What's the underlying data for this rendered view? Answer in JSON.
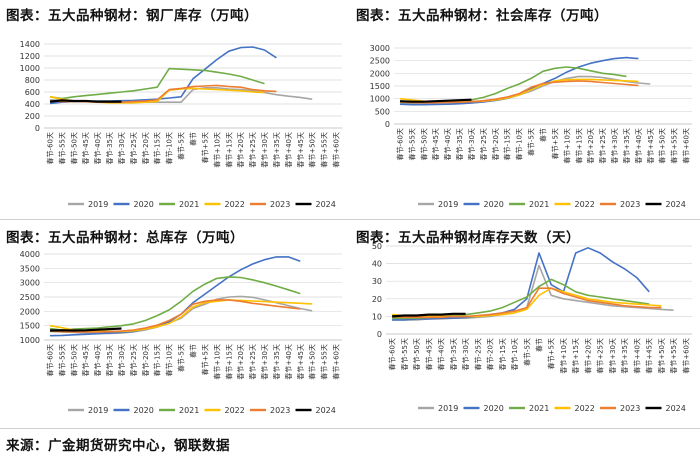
{
  "source": "来源：广金期货研究中心，钢联数据",
  "colors": {
    "2019": "#a6a6a6",
    "2020": "#4472c4",
    "2021": "#70ad47",
    "2022": "#ffc000",
    "2023": "#ed7d31",
    "2024": "#000000"
  },
  "chart_data": [
    {
      "type": "line",
      "title": "图表：五大品种钢材：钢厂库存（万吨）",
      "x": [
        "春节-60天",
        "春节-55天",
        "春节-50天",
        "春节-45天",
        "春节-40天",
        "春节-35天",
        "春节-30天",
        "春节-25天",
        "春节-20天",
        "春节-15天",
        "春节-10天",
        "春节-5天",
        "春节",
        "春节+5天",
        "春节+10天",
        "春节+15天",
        "春节+20天",
        "春节+25天",
        "春节+30天",
        "春节+35天",
        "春节+40天",
        "春节+45天",
        "春节+50天",
        "春节+55天",
        "春节+60天"
      ],
      "ylim": [
        0,
        1400
      ],
      "yticks": [
        0,
        200,
        400,
        600,
        800,
        1000,
        1200,
        1400
      ],
      "legend": "bottom",
      "series": [
        {
          "name": "2019",
          "values": [
            470,
            460,
            450,
            440,
            435,
            430,
            430,
            430,
            430,
            430,
            430,
            430,
            640,
            670,
            670,
            650,
            640,
            620,
            590,
            555,
            530,
            510,
            480,
            null,
            null
          ]
        },
        {
          "name": "2020",
          "values": [
            410,
            430,
            440,
            440,
            450,
            450,
            455,
            460,
            470,
            480,
            500,
            520,
            820,
            980,
            1140,
            1280,
            1340,
            1350,
            1300,
            1170,
            null,
            null,
            null,
            null,
            null
          ]
        },
        {
          "name": "2021",
          "values": [
            520,
            490,
            520,
            540,
            560,
            580,
            600,
            620,
            650,
            680,
            990,
            980,
            970,
            960,
            930,
            900,
            860,
            800,
            740,
            null,
            null,
            null,
            null,
            null,
            null
          ]
        },
        {
          "name": "2022",
          "values": [
            520,
            480,
            450,
            440,
            430,
            420,
            420,
            420,
            430,
            440,
            630,
            650,
            660,
            650,
            640,
            630,
            620,
            600,
            590,
            null,
            null,
            null,
            null,
            null,
            null
          ]
        },
        {
          "name": "2023",
          "values": [
            450,
            440,
            440,
            440,
            430,
            430,
            430,
            440,
            450,
            470,
            640,
            660,
            690,
            700,
            710,
            690,
            680,
            640,
            620,
            610,
            null,
            null,
            null,
            null,
            null
          ]
        },
        {
          "name": "2024",
          "values": [
            440,
            460,
            450,
            450,
            440,
            440,
            440,
            null,
            null,
            null,
            null,
            null,
            null,
            null,
            null,
            null,
            null,
            null,
            null,
            null,
            null,
            null,
            null,
            null,
            null
          ]
        }
      ]
    },
    {
      "type": "line",
      "title": "图表：五大品种钢材：社会库存（万吨）",
      "x": [
        "春节-60天",
        "春节-55天",
        "春节-50天",
        "春节-45天",
        "春节-40天",
        "春节-35天",
        "春节-30天",
        "春节-25天",
        "春节-20天",
        "春节-15天",
        "春节-10天",
        "春节-5天",
        "春节",
        "春节+5天",
        "春节+10天",
        "春节+15天",
        "春节+20天",
        "春节+25天",
        "春节+30天",
        "春节+35天",
        "春节+40天",
        "春节+45天",
        "春节+50天",
        "春节+55天",
        "春节+60天"
      ],
      "ylim": [
        0,
        3000
      ],
      "yticks": [
        0,
        500,
        1000,
        1500,
        2000,
        2500,
        3000
      ],
      "legend": "bottom",
      "series": [
        {
          "name": "2019",
          "values": [
            850,
            800,
            780,
            780,
            790,
            800,
            830,
            880,
            940,
            1020,
            1150,
            1300,
            1500,
            1680,
            1800,
            1880,
            1870,
            1830,
            1760,
            1680,
            1620,
            1580,
            null,
            null,
            null
          ]
        },
        {
          "name": "2020",
          "values": [
            780,
            760,
            760,
            770,
            780,
            800,
            830,
            870,
            930,
            1010,
            1150,
            1400,
            1600,
            1800,
            2050,
            2250,
            2400,
            2500,
            2580,
            2620,
            2580,
            null,
            null,
            null,
            null
          ]
        },
        {
          "name": "2021",
          "values": [
            860,
            850,
            860,
            860,
            880,
            900,
            950,
            1050,
            1200,
            1400,
            1580,
            1800,
            2080,
            2200,
            2250,
            2200,
            2100,
            2000,
            1950,
            1880,
            null,
            null,
            null,
            null,
            null
          ]
        },
        {
          "name": "2022",
          "values": [
            1000,
            950,
            900,
            880,
            880,
            880,
            880,
            900,
            950,
            1020,
            1150,
            1350,
            1550,
            1700,
            1750,
            1760,
            1760,
            1740,
            1720,
            1700,
            1680,
            null,
            null,
            null,
            null
          ]
        },
        {
          "name": "2023",
          "values": [
            870,
            850,
            840,
            840,
            850,
            860,
            880,
            920,
            980,
            1060,
            1200,
            1450,
            1600,
            1650,
            1680,
            1700,
            1680,
            1640,
            1600,
            1560,
            1520,
            null,
            null,
            null,
            null
          ]
        },
        {
          "name": "2024",
          "values": [
            900,
            880,
            880,
            900,
            920,
            940,
            960,
            null,
            null,
            null,
            null,
            null,
            null,
            null,
            null,
            null,
            null,
            null,
            null,
            null,
            null,
            null,
            null,
            null,
            null
          ]
        }
      ]
    },
    {
      "type": "line",
      "title": "图表：五大品种钢材：总库存（万吨）",
      "x": [
        "春节-60天",
        "春节-55天",
        "春节-50天",
        "春节-45天",
        "春节-40天",
        "春节-35天",
        "春节-30天",
        "春节-25天",
        "春节-20天",
        "春节-15天",
        "春节-10天",
        "春节-5天",
        "春节",
        "春节+5天",
        "春节+10天",
        "春节+15天",
        "春节+20天",
        "春节+25天",
        "春节+30天",
        "春节+35天",
        "春节+40天",
        "春节+45天",
        "春节+50天",
        "春节+55天",
        "春节+60天"
      ],
      "ylim": [
        1000,
        4000
      ],
      "yticks": [
        1000,
        1500,
        2000,
        2500,
        3000,
        3500,
        4000
      ],
      "legend": "bottom",
      "series": [
        {
          "name": "2019",
          "values": [
            1300,
            1280,
            1260,
            1240,
            1230,
            1230,
            1240,
            1280,
            1350,
            1450,
            1600,
            1760,
            2100,
            2250,
            2420,
            2500,
            2520,
            2490,
            2400,
            2300,
            2200,
            2100,
            2020,
            null,
            null
          ]
        },
        {
          "name": "2020",
          "values": [
            1150,
            1160,
            1180,
            1200,
            1220,
            1240,
            1270,
            1300,
            1380,
            1480,
            1640,
            1900,
            2300,
            2600,
            2900,
            3200,
            3450,
            3650,
            3800,
            3900,
            3900,
            3750,
            null,
            null,
            null
          ]
        },
        {
          "name": "2021",
          "values": [
            1400,
            1350,
            1380,
            1400,
            1420,
            1460,
            1500,
            1560,
            1680,
            1850,
            2050,
            2350,
            2700,
            2950,
            3150,
            3200,
            3180,
            3100,
            3000,
            2880,
            2750,
            2620,
            null,
            null,
            null
          ]
        },
        {
          "name": "2022",
          "values": [
            1500,
            1430,
            1350,
            1320,
            1310,
            1300,
            1300,
            1320,
            1380,
            1460,
            1580,
            1800,
            2150,
            2300,
            2350,
            2400,
            2380,
            2360,
            2340,
            2320,
            2300,
            2280,
            2260,
            null,
            null
          ]
        },
        {
          "name": "2023",
          "values": [
            1310,
            1290,
            1280,
            1280,
            1280,
            1290,
            1310,
            1350,
            1420,
            1520,
            1680,
            1900,
            2250,
            2350,
            2400,
            2400,
            2350,
            2280,
            2230,
            2180,
            2130,
            2080,
            null,
            null,
            null
          ]
        },
        {
          "name": "2024",
          "values": [
            1330,
            1340,
            1330,
            1340,
            1360,
            1380,
            1400,
            null,
            null,
            null,
            null,
            null,
            null,
            null,
            null,
            null,
            null,
            null,
            null,
            null,
            null,
            null,
            null,
            null,
            null
          ]
        }
      ]
    },
    {
      "type": "line",
      "title": "图表：五大品种钢材库存天数（天）",
      "x": [
        "春节-60天",
        "春节-55天",
        "春节-50天",
        "春节-45天",
        "春节-40天",
        "春节-35天",
        "春节-30天",
        "春节-25天",
        "春节-20天",
        "春节-15天",
        "春节-10天",
        "春节-5天",
        "春节",
        "春节+5天",
        "春节+10天",
        "春节+15天",
        "春节+20天",
        "春节+25天",
        "春节+30天",
        "春节+35天",
        "春节+40天",
        "春节+45天",
        "春节+50天",
        "春节+55天",
        "春节+60天"
      ],
      "ylim": [
        0,
        50
      ],
      "yticks": [
        0,
        10,
        20,
        30,
        40,
        50
      ],
      "legend": "bottom",
      "series": [
        {
          "name": "2019",
          "values": [
            8,
            8,
            8,
            8.5,
            8.5,
            9,
            9,
            9.5,
            10,
            11,
            12,
            15,
            39,
            22,
            20,
            19,
            18,
            17,
            16,
            15.5,
            15,
            14.5,
            14,
            13.5,
            null
          ]
        },
        {
          "name": "2020",
          "values": [
            8,
            8,
            8.5,
            8.5,
            9,
            9,
            9.5,
            10,
            11,
            12,
            14,
            20,
            46,
            28,
            24,
            46,
            49,
            46,
            41,
            37,
            32,
            24,
            null,
            null,
            null
          ]
        },
        {
          "name": "2021",
          "values": [
            9,
            9,
            9,
            9.5,
            10,
            10.5,
            11,
            12,
            13,
            15,
            18,
            21,
            27,
            31,
            28,
            24,
            22,
            21,
            20,
            19,
            18,
            17,
            null,
            null,
            null
          ]
        },
        {
          "name": "2022",
          "values": [
            11,
            10.5,
            10,
            10,
            10,
            10,
            10,
            10,
            10.5,
            11,
            12,
            14,
            22,
            26,
            24,
            22,
            20,
            19,
            18,
            17.5,
            17,
            16.5,
            16,
            null,
            null
          ]
        },
        {
          "name": "2023",
          "values": [
            10,
            9.5,
            9.5,
            9.5,
            9.5,
            10,
            10,
            10.5,
            11,
            12,
            13,
            15,
            26,
            26,
            23,
            21,
            19,
            18,
            17,
            16,
            15.5,
            15,
            15,
            null,
            null
          ]
        },
        {
          "name": "2024",
          "values": [
            10,
            10.5,
            10.5,
            11,
            11,
            11.5,
            11.5,
            null,
            null,
            null,
            null,
            null,
            null,
            null,
            null,
            null,
            null,
            null,
            null,
            null,
            null,
            null,
            null,
            null,
            null
          ]
        }
      ]
    }
  ]
}
